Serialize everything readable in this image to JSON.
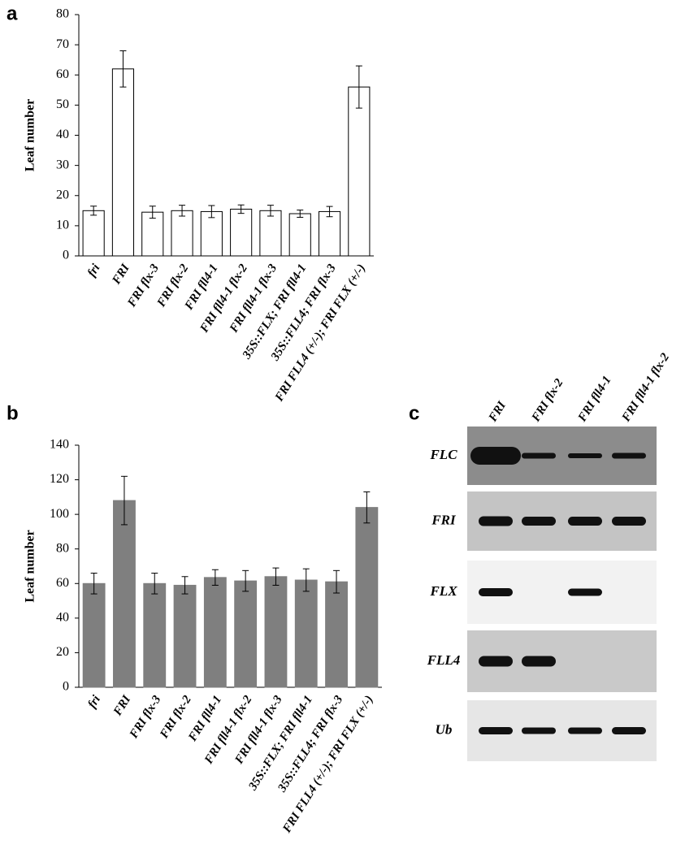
{
  "chart_data": [
    {
      "type": "bar",
      "panel_label": "a",
      "ylabel": "Leaf number",
      "categories": [
        "fri",
        "FRI",
        "FRI flx-3",
        "FRI flx-2",
        "FRI fll4-1",
        "FRI fll4-1 flx-2",
        "FRI fll4-1 flx-3",
        "35S::FLX; FRI fll4-1",
        "35S::FLL4; FRI flx-3",
        "FRI FLL4 (+/-); FRI FLX (+/-)"
      ],
      "values": [
        15,
        62,
        14.5,
        15,
        14.7,
        15.5,
        15,
        14,
        14.7,
        56
      ],
      "errors": [
        1.5,
        6,
        2,
        1.8,
        2,
        1.4,
        1.8,
        1.2,
        1.7,
        7
      ],
      "color": "#ffffff",
      "edgecolor": "#000000",
      "ylim": [
        0,
        80
      ],
      "yticks": [
        0,
        10,
        20,
        30,
        40,
        50,
        60,
        70,
        80
      ]
    },
    {
      "type": "bar",
      "panel_label": "b",
      "ylabel": "Leaf number",
      "categories": [
        "fri",
        "FRI",
        "FRI flx-3",
        "FRI flx-2",
        "FRI fll4-1",
        "FRI fll4-1 flx-2",
        "FRI fll4-1 flx-3",
        "35S::FLX; FRI fll4-1",
        "35S::FLL4; FRI flx-3",
        "FRI FLL4 (+/-); FRI FLX (+/-)"
      ],
      "values": [
        60,
        108,
        60,
        59,
        63.5,
        61.5,
        64,
        62,
        61,
        104
      ],
      "errors": [
        6,
        14,
        6,
        5,
        4.5,
        6,
        5,
        6.5,
        6.5,
        9
      ],
      "color": "#7f7f7f",
      "edgecolor": "#7f7f7f",
      "ylim": [
        0,
        140
      ],
      "yticks": [
        0,
        20,
        40,
        60,
        80,
        100,
        120,
        140
      ]
    }
  ],
  "gel": {
    "panel_label": "c",
    "lanes": [
      "FRI",
      "FRI flx-2",
      "FRI fll4-1",
      "FRI fll4-1 flx-2"
    ],
    "genes": [
      "FLC",
      "FRI",
      "FLX",
      "FLL4",
      "Ub"
    ]
  }
}
